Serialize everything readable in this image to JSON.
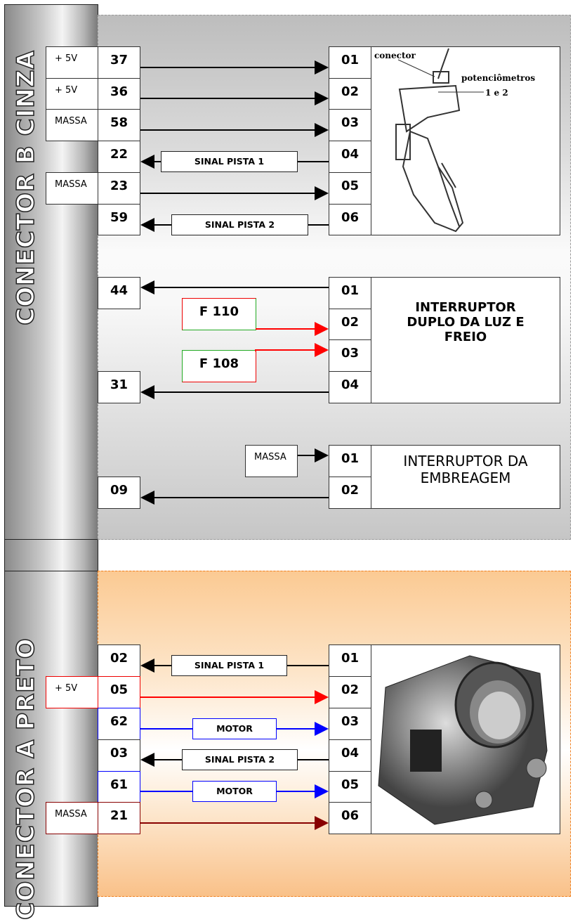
{
  "connector_b": {
    "title": "CONECTOR B CINZA",
    "pedal": {
      "ecu_pins": [
        "37",
        "36",
        "58",
        "22",
        "23",
        "59"
      ],
      "side_labels": [
        "+ 5V",
        "+ 5V",
        "MASSA",
        "MASSA"
      ],
      "device_pins": [
        "01",
        "02",
        "03",
        "04",
        "05",
        "06"
      ],
      "signal_tags": [
        "SINAL PISTA 1",
        "SINAL PISTA 2"
      ],
      "image_labels": {
        "connector": "conector",
        "pots": "potenciômetros",
        "pots_num": "1  e  2"
      }
    },
    "brake_switch": {
      "ecu_pins": [
        "44",
        "31"
      ],
      "fuses": [
        "F 110",
        "F 108"
      ],
      "device_pins": [
        "01",
        "02",
        "03",
        "04"
      ],
      "name": "INTERRUPTOR DUPLO DA LUZ E FREIO"
    },
    "clutch_switch": {
      "ecu_pin": "09",
      "side_label": "MASSA",
      "device_pins": [
        "01",
        "02"
      ],
      "name": "INTERRUPTOR DA EMBREAGEM"
    }
  },
  "connector_a": {
    "title": "CONECTOR A PRETO",
    "ecu_pins": [
      "02",
      "05",
      "62",
      "03",
      "61",
      "21"
    ],
    "side_labels": [
      "+ 5V",
      "MASSA"
    ],
    "device_pins": [
      "01",
      "02",
      "03",
      "04",
      "05",
      "06"
    ],
    "tags": [
      "SINAL PISTA 1",
      "MOTOR",
      "SINAL PISTA 2",
      "MOTOR"
    ]
  },
  "colors": {
    "red": "#ff0000",
    "blue": "#0000ff",
    "darkred": "#800000",
    "black": "#000000"
  }
}
